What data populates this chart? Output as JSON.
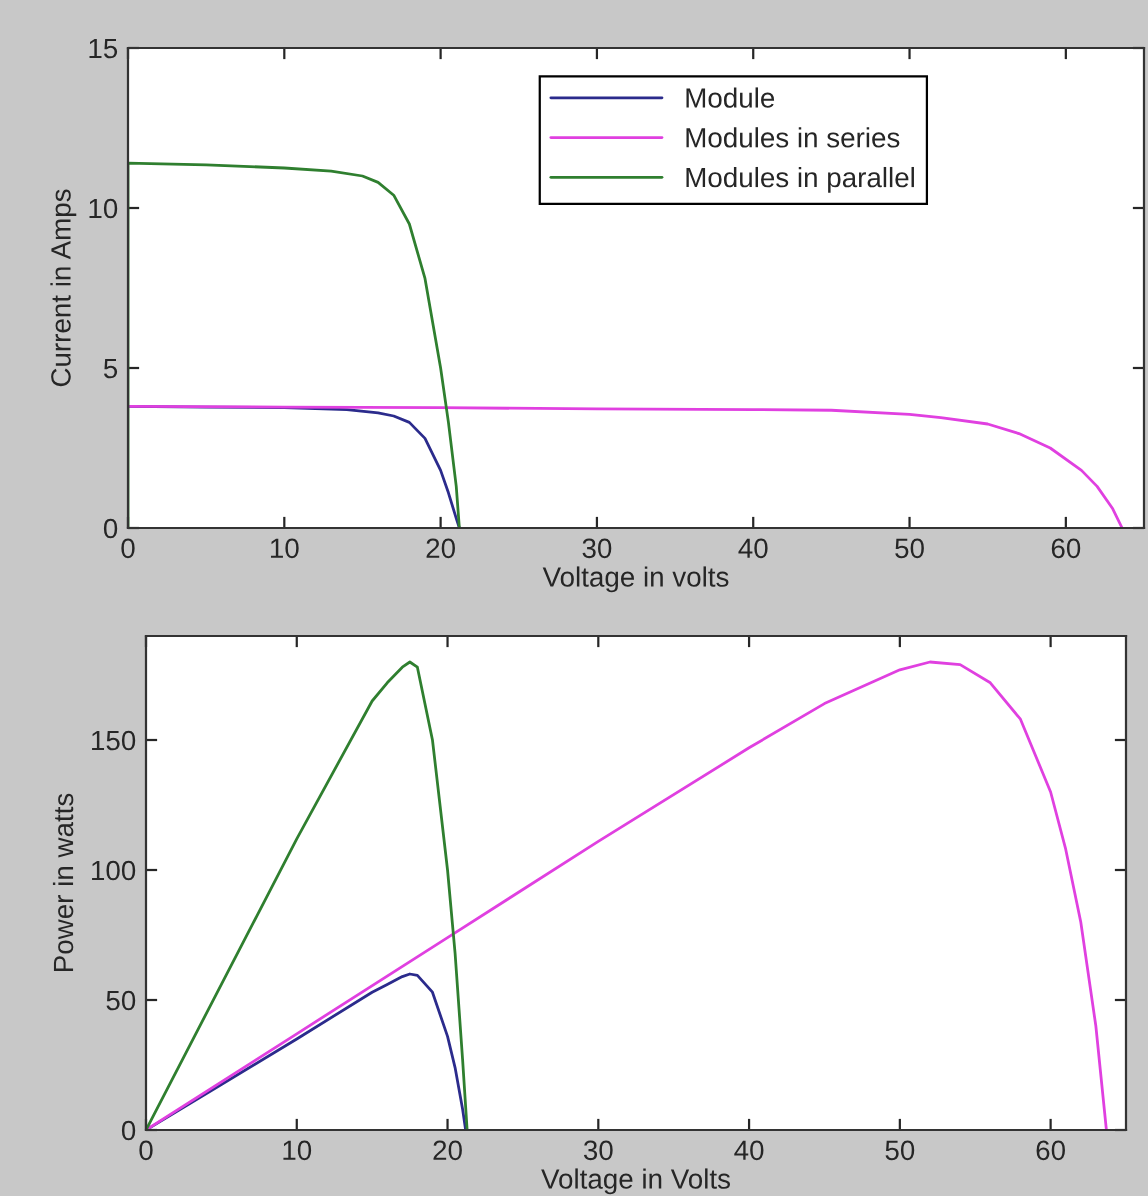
{
  "chart_data": [
    {
      "type": "line",
      "xlabel": "Voltage in volts",
      "ylabel": "Current in Amps",
      "xlim": [
        0,
        65
      ],
      "ylim": [
        0,
        15
      ],
      "xticks": [
        0,
        10,
        20,
        30,
        40,
        50,
        60
      ],
      "yticks": [
        0,
        5,
        10,
        15
      ],
      "grid": false,
      "legend": "top right",
      "series": [
        {
          "name": "Module",
          "color": "#2b2b8c",
          "x": [
            0,
            5,
            10,
            14,
            16,
            17,
            18,
            19,
            20,
            20.5,
            21,
            21.2
          ],
          "values": [
            3.8,
            3.78,
            3.76,
            3.7,
            3.6,
            3.5,
            3.3,
            2.8,
            1.8,
            1.1,
            0.3,
            0
          ]
        },
        {
          "name": "Modules in series",
          "color": "#e040e0",
          "x": [
            0,
            10,
            20,
            30,
            40,
            45,
            50,
            52,
            55,
            57,
            59,
            61,
            62,
            63,
            63.6
          ],
          "values": [
            3.8,
            3.78,
            3.76,
            3.72,
            3.7,
            3.68,
            3.55,
            3.45,
            3.25,
            2.95,
            2.5,
            1.8,
            1.3,
            0.6,
            0
          ]
        },
        {
          "name": "Modules in parallel",
          "color": "#2f7f2f",
          "x": [
            0,
            0,
            5,
            10,
            13,
            15,
            16,
            17,
            18,
            19,
            20,
            20.5,
            21,
            21.2
          ],
          "values": [
            0,
            11.4,
            11.35,
            11.25,
            11.15,
            11.0,
            10.8,
            10.4,
            9.5,
            7.8,
            5.0,
            3.3,
            1.3,
            0
          ]
        }
      ]
    },
    {
      "type": "line",
      "xlabel": "Voltage in Volts",
      "ylabel": "Power in watts",
      "xlim": [
        0,
        65
      ],
      "ylim": [
        0,
        190
      ],
      "xticks": [
        0,
        10,
        20,
        30,
        40,
        50,
        60
      ],
      "yticks": [
        0,
        50,
        100,
        150
      ],
      "grid": false,
      "series": [
        {
          "color": "#2b2b8c",
          "x": [
            0,
            5,
            10,
            15,
            16,
            17,
            17.5,
            18,
            19,
            20,
            20.5,
            21,
            21.2
          ],
          "values": [
            0,
            17.5,
            35,
            53,
            56,
            59,
            60,
            59.5,
            53,
            36,
            24,
            8,
            0
          ]
        },
        {
          "color": "#e040e0",
          "x": [
            0,
            10,
            20,
            30,
            40,
            45,
            50,
            52,
            54,
            56,
            58,
            60,
            61,
            62,
            63,
            63.7
          ],
          "values": [
            0,
            37,
            74,
            111,
            147,
            164,
            177,
            180,
            179,
            172,
            158,
            130,
            108,
            80,
            40,
            0
          ]
        },
        {
          "color": "#2f7f2f",
          "x": [
            0,
            5,
            10,
            15,
            16,
            17,
            17.5,
            18,
            19,
            20,
            20.5,
            21,
            21.3
          ],
          "values": [
            0,
            56,
            112,
            165,
            172,
            178,
            180,
            178,
            150,
            100,
            68,
            27,
            0
          ]
        }
      ]
    }
  ]
}
